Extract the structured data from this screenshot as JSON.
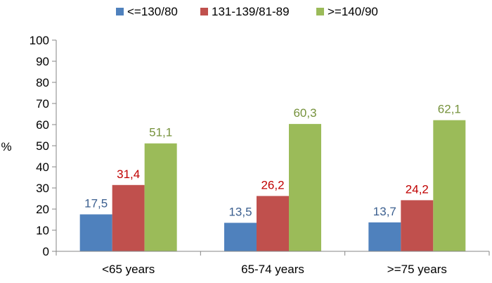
{
  "chart_data": {
    "type": "bar",
    "title": "",
    "xlabel": "",
    "ylabel": "%",
    "ylim": [
      0,
      100
    ],
    "ytick_step": 10,
    "grid": false,
    "legend_position": "top",
    "categories": [
      "<65 years",
      "65-74 years",
      ">=75 years"
    ],
    "series": [
      {
        "name": "<=130/80",
        "color": "#4f81bd",
        "label_color": "#3b5f8f",
        "values": [
          17.5,
          13.5,
          13.7
        ],
        "labels": [
          "17,5",
          "13,5",
          "13,7"
        ]
      },
      {
        "name": "131-139/81-89",
        "color": "#c0504d",
        "label_color": "#c00000",
        "values": [
          31.4,
          26.2,
          24.2
        ],
        "labels": [
          "31,4",
          "26,2",
          "24,2"
        ]
      },
      {
        "name": ">=140/90",
        "color": "#9bbb59",
        "label_color": "#76923c",
        "values": [
          51.1,
          60.3,
          62.1
        ],
        "labels": [
          "51,1",
          "60,3",
          "62,1"
        ]
      }
    ]
  }
}
